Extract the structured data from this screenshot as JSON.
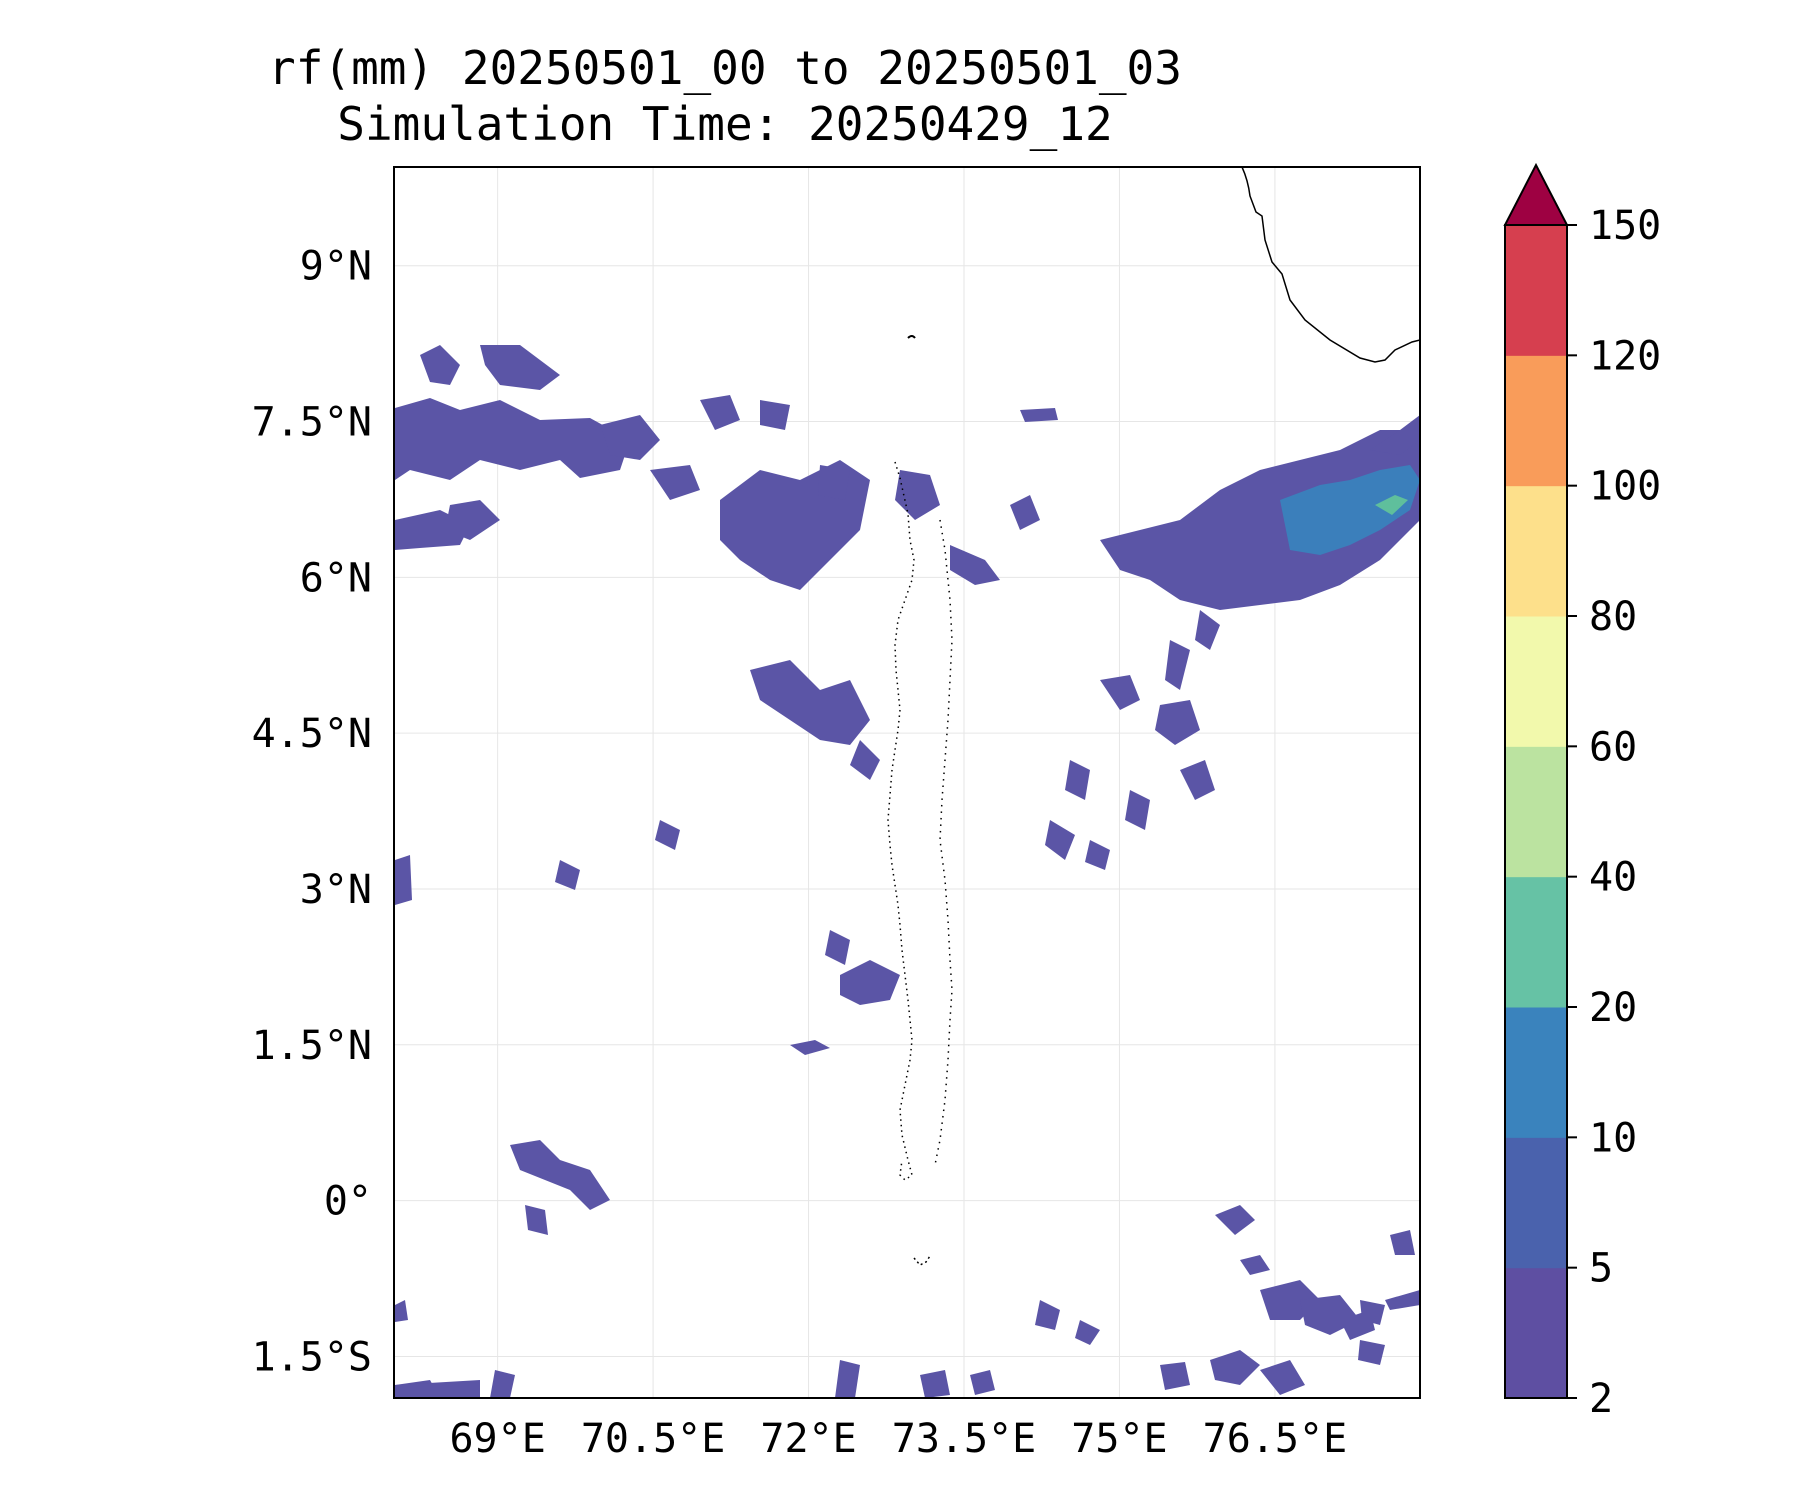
{
  "title": "rf(mm) 20250501_00 to 20250501_03",
  "subtitle": "Simulation Time: 20250429_12",
  "map": {
    "lon_range": [
      68.0,
      77.9
    ],
    "lat_range": [
      -1.9,
      9.95
    ],
    "x_ticks": [
      {
        "value": 69.0,
        "label": "69°E"
      },
      {
        "value": 70.5,
        "label": "70.5°E"
      },
      {
        "value": 72.0,
        "label": "72°E"
      },
      {
        "value": 73.5,
        "label": "73.5°E"
      },
      {
        "value": 75.0,
        "label": "75°E"
      },
      {
        "value": 76.5,
        "label": "76.5°E"
      }
    ],
    "y_ticks": [
      {
        "value": 9.0,
        "label": "9°N"
      },
      {
        "value": 7.5,
        "label": "7.5°N"
      },
      {
        "value": 6.0,
        "label": "6°N"
      },
      {
        "value": 4.5,
        "label": "4.5°N"
      },
      {
        "value": 3.0,
        "label": "3°N"
      },
      {
        "value": 1.5,
        "label": "1.5°N"
      },
      {
        "value": 0.0,
        "label": "0°"
      },
      {
        "value": -1.5,
        "label": "1.5°S"
      }
    ],
    "gridlines": true,
    "coastline_color": "#000000"
  },
  "colorbar": {
    "levels": [
      {
        "value": 2,
        "label": "2"
      },
      {
        "value": 5,
        "label": "5"
      },
      {
        "value": 10,
        "label": "10"
      },
      {
        "value": 20,
        "label": "20"
      },
      {
        "value": 40,
        "label": "40"
      },
      {
        "value": 60,
        "label": "60"
      },
      {
        "value": 80,
        "label": "80"
      },
      {
        "value": 100,
        "label": "100"
      },
      {
        "value": 120,
        "label": "120"
      },
      {
        "value": 150,
        "label": "150"
      }
    ],
    "colors": [
      "#5e4fa2",
      "#4a62ad",
      "#3a83bd",
      "#66c2a5",
      "#bbe3a0",
      "#f2f9ac",
      "#fde08b",
      "#f99c5a",
      "#d63f4f"
    ],
    "extend_color": "#9e0142",
    "extend": "max"
  },
  "rain_fields": {
    "light_color": "#5b55a6",
    "medium_color": "#3b7fbb",
    "heavy_color": "#5fbf9c"
  }
}
